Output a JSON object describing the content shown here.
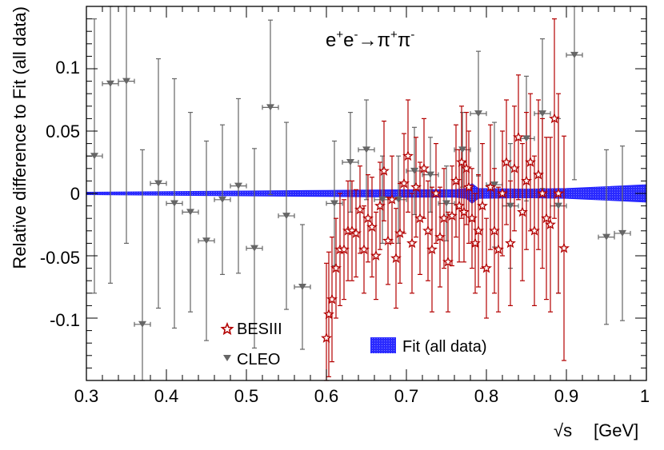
{
  "chart_data": {
    "type": "scatter",
    "title": "e⁺e⁻→π⁺π⁻",
    "title_parts": {
      "e": "e",
      "plus": "+",
      "minus": "-",
      "arrow": "→",
      "pi": "π"
    },
    "xlabel": {
      "sqrt": "√s",
      "unit": "[GeV]"
    },
    "ylabel": "Relative difference to Fit (all data)",
    "xlim": [
      0.3,
      1.0
    ],
    "ylim": [
      -0.15,
      0.15
    ],
    "x_ticks": [
      "0.3",
      "0.4",
      "0.5",
      "0.6",
      "0.7",
      "0.8",
      "0.9",
      "1"
    ],
    "y_ticks": [
      "0.1",
      "0.05",
      "0",
      "-0.05",
      "-0.1"
    ],
    "legend": [
      {
        "label": "BESIII",
        "marker": "open-star",
        "color": "#b30000"
      },
      {
        "label": "CLEO",
        "marker": "down-triangle",
        "color": "#666666"
      },
      {
        "label": "Fit (all data)",
        "marker": "band",
        "color": "#2020ff"
      }
    ],
    "series": [
      {
        "name": "CLEO",
        "color": "#666666",
        "points": [
          {
            "x": 0.31,
            "y": 0.03,
            "err": 0.11,
            "xerr": 0.01
          },
          {
            "x": 0.33,
            "y": 0.088,
            "err": 0.16,
            "xerr": 0.01
          },
          {
            "x": 0.35,
            "y": 0.09,
            "err": 0.13,
            "xerr": 0.01
          },
          {
            "x": 0.37,
            "y": -0.105,
            "err": 0.14,
            "xerr": 0.01
          },
          {
            "x": 0.39,
            "y": 0.008,
            "err": 0.1,
            "xerr": 0.01
          },
          {
            "x": 0.41,
            "y": -0.008,
            "err": 0.1,
            "xerr": 0.01
          },
          {
            "x": 0.43,
            "y": -0.015,
            "err": 0.08,
            "xerr": 0.01
          },
          {
            "x": 0.45,
            "y": -0.038,
            "err": 0.08,
            "xerr": 0.01
          },
          {
            "x": 0.47,
            "y": -0.005,
            "err": 0.06,
            "xerr": 0.01
          },
          {
            "x": 0.49,
            "y": 0.006,
            "err": 0.07,
            "xerr": 0.01
          },
          {
            "x": 0.51,
            "y": -0.044,
            "err": 0.08,
            "xerr": 0.01
          },
          {
            "x": 0.53,
            "y": 0.069,
            "err": 0.07,
            "xerr": 0.01
          },
          {
            "x": 0.55,
            "y": -0.018,
            "err": 0.075,
            "xerr": 0.01
          },
          {
            "x": 0.57,
            "y": -0.075,
            "err": 0.05,
            "xerr": 0.01
          },
          {
            "x": 0.61,
            "y": -0.008,
            "err": 0.05,
            "xerr": 0.01
          },
          {
            "x": 0.63,
            "y": 0.025,
            "err": 0.04,
            "xerr": 0.01
          },
          {
            "x": 0.65,
            "y": 0.035,
            "err": 0.04,
            "xerr": 0.01
          },
          {
            "x": 0.67,
            "y": -0.005,
            "err": 0.035,
            "xerr": 0.01
          },
          {
            "x": 0.69,
            "y": -0.005,
            "err": 0.035,
            "xerr": 0.01
          },
          {
            "x": 0.71,
            "y": 0.018,
            "err": 0.035,
            "xerr": 0.01
          },
          {
            "x": 0.73,
            "y": 0.015,
            "err": 0.03,
            "xerr": 0.01
          },
          {
            "x": 0.75,
            "y": -0.008,
            "err": 0.03,
            "xerr": 0.01
          },
          {
            "x": 0.77,
            "y": 0.035,
            "err": 0.03,
            "xerr": 0.01
          },
          {
            "x": 0.79,
            "y": 0.064,
            "err": 0.05,
            "xerr": 0.01
          },
          {
            "x": 0.81,
            "y": 0.007,
            "err": 0.05,
            "xerr": 0.01
          },
          {
            "x": 0.83,
            "y": -0.01,
            "err": 0.05,
            "xerr": 0.01
          },
          {
            "x": 0.85,
            "y": 0.044,
            "err": 0.05,
            "xerr": 0.01
          },
          {
            "x": 0.87,
            "y": 0.064,
            "err": 0.06,
            "xerr": 0.01
          },
          {
            "x": 0.89,
            "y": -0.01,
            "err": 0.07,
            "xerr": 0.01
          },
          {
            "x": 0.91,
            "y": 0.111,
            "err": 0.1,
            "xerr": 0.01
          },
          {
            "x": 0.95,
            "y": -0.035,
            "err": 0.07,
            "xerr": 0.01
          },
          {
            "x": 0.97,
            "y": -0.032,
            "err": 0.07,
            "xerr": 0.01
          }
        ]
      },
      {
        "name": "BESIII",
        "color": "#b30000",
        "points": [
          {
            "x": 0.6,
            "y": -0.116,
            "err": 0.06
          },
          {
            "x": 0.603,
            "y": -0.097,
            "err": 0.05
          },
          {
            "x": 0.607,
            "y": -0.085,
            "err": 0.05
          },
          {
            "x": 0.612,
            "y": -0.06,
            "err": 0.04
          },
          {
            "x": 0.617,
            "y": -0.045,
            "err": 0.045
          },
          {
            "x": 0.622,
            "y": -0.045,
            "err": 0.04
          },
          {
            "x": 0.627,
            "y": -0.03,
            "err": 0.04
          },
          {
            "x": 0.632,
            "y": -0.03,
            "err": 0.04
          },
          {
            "x": 0.637,
            "y": -0.032,
            "err": 0.035
          },
          {
            "x": 0.642,
            "y": -0.013,
            "err": 0.035
          },
          {
            "x": 0.647,
            "y": -0.045,
            "err": 0.035
          },
          {
            "x": 0.652,
            "y": -0.02,
            "err": 0.035
          },
          {
            "x": 0.657,
            "y": -0.027,
            "err": 0.04
          },
          {
            "x": 0.662,
            "y": -0.05,
            "err": 0.035
          },
          {
            "x": 0.667,
            "y": -0.01,
            "err": 0.035
          },
          {
            "x": 0.672,
            "y": 0.018,
            "err": 0.04
          },
          {
            "x": 0.677,
            "y": -0.038,
            "err": 0.035
          },
          {
            "x": 0.682,
            "y": -0.005,
            "err": 0.035
          },
          {
            "x": 0.687,
            "y": -0.052,
            "err": 0.04
          },
          {
            "x": 0.692,
            "y": -0.032,
            "err": 0.04
          },
          {
            "x": 0.697,
            "y": 0.008,
            "err": 0.04
          },
          {
            "x": 0.702,
            "y": 0.03,
            "err": 0.045
          },
          {
            "x": 0.707,
            "y": -0.04,
            "err": 0.04
          },
          {
            "x": 0.712,
            "y": 0.005,
            "err": 0.04
          },
          {
            "x": 0.717,
            "y": -0.02,
            "err": 0.045
          },
          {
            "x": 0.722,
            "y": 0.02,
            "err": 0.04
          },
          {
            "x": 0.727,
            "y": -0.03,
            "err": 0.04
          },
          {
            "x": 0.732,
            "y": -0.045,
            "err": 0.05
          },
          {
            "x": 0.737,
            "y": 0.0,
            "err": 0.04
          },
          {
            "x": 0.742,
            "y": -0.035,
            "err": 0.04
          },
          {
            "x": 0.747,
            "y": -0.02,
            "err": 0.04
          },
          {
            "x": 0.752,
            "y": -0.055,
            "err": 0.04
          },
          {
            "x": 0.757,
            "y": -0.018,
            "err": 0.04
          },
          {
            "x": 0.762,
            "y": 0.01,
            "err": 0.045
          },
          {
            "x": 0.766,
            "y": -0.01,
            "err": 0.045
          },
          {
            "x": 0.769,
            "y": 0.025,
            "err": 0.045
          },
          {
            "x": 0.772,
            "y": -0.015,
            "err": 0.04
          },
          {
            "x": 0.775,
            "y": 0.02,
            "err": 0.045
          },
          {
            "x": 0.778,
            "y": 0.005,
            "err": 0.045
          },
          {
            "x": 0.782,
            "y": -0.02,
            "err": 0.04
          },
          {
            "x": 0.786,
            "y": -0.04,
            "err": 0.04
          },
          {
            "x": 0.79,
            "y": -0.03,
            "err": 0.045
          },
          {
            "x": 0.795,
            "y": -0.01,
            "err": 0.05
          },
          {
            "x": 0.8,
            "y": -0.06,
            "err": 0.04
          },
          {
            "x": 0.805,
            "y": 0.005,
            "err": 0.05
          },
          {
            "x": 0.81,
            "y": -0.03,
            "err": 0.05
          },
          {
            "x": 0.815,
            "y": -0.045,
            "err": 0.05
          },
          {
            "x": 0.82,
            "y": 0.0,
            "err": 0.05
          },
          {
            "x": 0.825,
            "y": 0.025,
            "err": 0.05
          },
          {
            "x": 0.83,
            "y": -0.04,
            "err": 0.05
          },
          {
            "x": 0.835,
            "y": 0.02,
            "err": 0.05
          },
          {
            "x": 0.84,
            "y": 0.045,
            "err": 0.05
          },
          {
            "x": 0.845,
            "y": -0.015,
            "err": 0.055
          },
          {
            "x": 0.85,
            "y": 0.01,
            "err": 0.055
          },
          {
            "x": 0.855,
            "y": 0.025,
            "err": 0.055
          },
          {
            "x": 0.86,
            "y": -0.03,
            "err": 0.06
          },
          {
            "x": 0.865,
            "y": 0.015,
            "err": 0.06
          },
          {
            "x": 0.87,
            "y": 0.0,
            "err": 0.06
          },
          {
            "x": 0.875,
            "y": -0.02,
            "err": 0.065
          },
          {
            "x": 0.88,
            "y": -0.025,
            "err": 0.07
          },
          {
            "x": 0.885,
            "y": 0.06,
            "err": 0.08
          },
          {
            "x": 0.89,
            "y": 0.0,
            "err": 0.08
          },
          {
            "x": 0.897,
            "y": -0.044,
            "err": 0.09
          }
        ]
      },
      {
        "name": "Fit (all data)",
        "color": "#2020ff",
        "band": [
          {
            "x": 0.3,
            "half": 0.001
          },
          {
            "x": 0.4,
            "half": 0.0015
          },
          {
            "x": 0.5,
            "half": 0.002
          },
          {
            "x": 0.6,
            "half": 0.0025
          },
          {
            "x": 0.7,
            "half": 0.003
          },
          {
            "x": 0.76,
            "half": 0.003
          },
          {
            "x": 0.775,
            "half": 0.004
          },
          {
            "x": 0.782,
            "half": 0.008
          },
          {
            "x": 0.79,
            "half": 0.004
          },
          {
            "x": 0.85,
            "half": 0.0035
          },
          {
            "x": 0.9,
            "half": 0.004
          },
          {
            "x": 1.0,
            "half": 0.007
          }
        ]
      }
    ]
  }
}
